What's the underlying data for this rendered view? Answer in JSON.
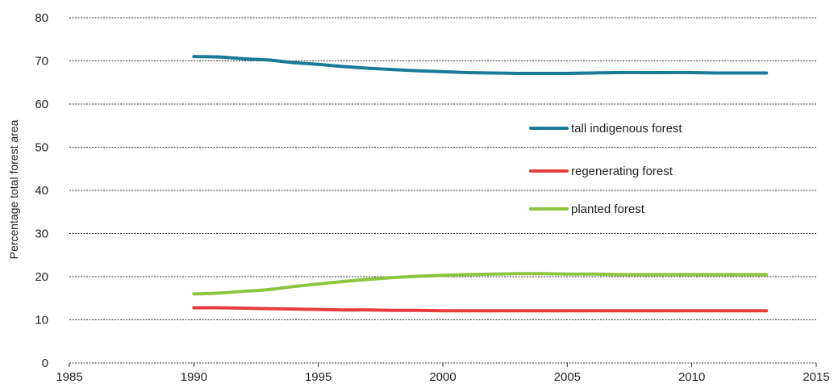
{
  "chart_data": {
    "type": "line",
    "title": "",
    "xlabel": "",
    "ylabel": "Percentage total forest area",
    "xlim": [
      1985,
      2015
    ],
    "ylim": [
      0,
      80
    ],
    "xticks": [
      1985,
      1990,
      1995,
      2000,
      2005,
      2010,
      2015
    ],
    "yticks": [
      0,
      10,
      20,
      30,
      40,
      50,
      60,
      70,
      80
    ],
    "grid": "horizontal dotted",
    "legend_position": "right-center",
    "series": [
      {
        "name": "tall indigenous forest",
        "color": "#1a7a9a",
        "x": [
          1990,
          1991,
          1992,
          1993,
          1994,
          1995,
          1996,
          1997,
          1998,
          1999,
          2000,
          2001,
          2002,
          2003,
          2004,
          2005,
          2006,
          2007,
          2008,
          2009,
          2010,
          2011,
          2012,
          2013
        ],
        "y": [
          71.0,
          70.9,
          70.5,
          70.2,
          69.6,
          69.2,
          68.7,
          68.3,
          68.0,
          67.7,
          67.5,
          67.3,
          67.2,
          67.1,
          67.1,
          67.1,
          67.2,
          67.3,
          67.3,
          67.3,
          67.3,
          67.2,
          67.2,
          67.2
        ]
      },
      {
        "name": "regenerating forest",
        "color": "#e63c3c",
        "x": [
          1990,
          1991,
          1992,
          1993,
          1994,
          1995,
          1996,
          1997,
          1998,
          1999,
          2000,
          2001,
          2002,
          2003,
          2004,
          2005,
          2006,
          2007,
          2008,
          2009,
          2010,
          2011,
          2012,
          2013
        ],
        "y": [
          12.8,
          12.8,
          12.7,
          12.6,
          12.5,
          12.4,
          12.3,
          12.3,
          12.2,
          12.2,
          12.1,
          12.1,
          12.1,
          12.1,
          12.1,
          12.1,
          12.1,
          12.1,
          12.1,
          12.1,
          12.1,
          12.1,
          12.1,
          12.1
        ]
      },
      {
        "name": "planted forest",
        "color": "#8cc63f",
        "x": [
          1990,
          1991,
          1992,
          1993,
          1994,
          1995,
          1996,
          1997,
          1998,
          1999,
          2000,
          2001,
          2002,
          2003,
          2004,
          2005,
          2006,
          2007,
          2008,
          2009,
          2010,
          2011,
          2012,
          2013
        ],
        "y": [
          16.0,
          16.2,
          16.6,
          17.0,
          17.7,
          18.3,
          18.9,
          19.4,
          19.8,
          20.1,
          20.3,
          20.5,
          20.6,
          20.7,
          20.7,
          20.6,
          20.6,
          20.5,
          20.5,
          20.5,
          20.5,
          20.5,
          20.5,
          20.5
        ]
      }
    ]
  }
}
